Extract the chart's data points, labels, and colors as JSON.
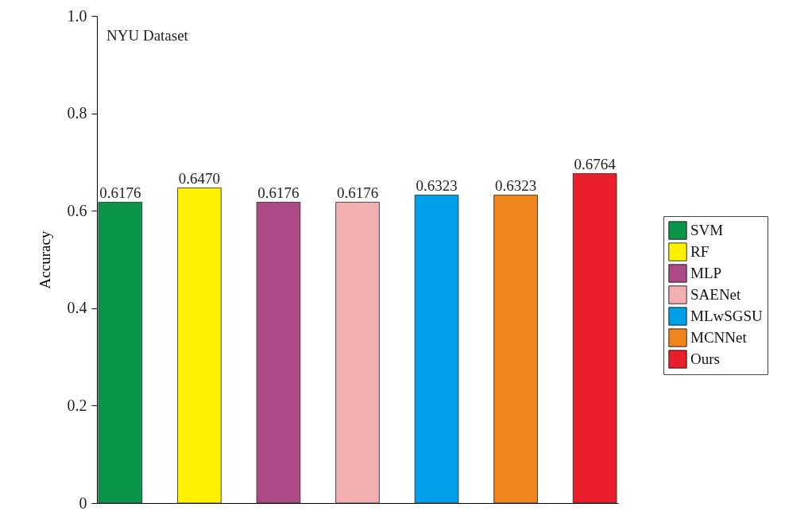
{
  "chart_data": {
    "type": "bar",
    "categories": [
      null,
      null,
      null,
      null,
      null,
      null,
      null
    ],
    "series": [
      {
        "name": "SVM",
        "color": "#0a9548",
        "values": [
          0.6176,
          null,
          null,
          null,
          null,
          null,
          null
        ],
        "value_labels": [
          "0.6176",
          null,
          null,
          null,
          null,
          null,
          null
        ]
      },
      {
        "name": "RF",
        "color": "#fff200",
        "values": [
          null,
          0.647,
          null,
          null,
          null,
          null,
          null
        ],
        "value_labels": [
          null,
          "0.6470",
          null,
          null,
          null,
          null,
          null
        ]
      },
      {
        "name": "MLP",
        "color": "#ad4a86",
        "values": [
          null,
          null,
          0.6176,
          null,
          null,
          null,
          null
        ],
        "value_labels": [
          null,
          null,
          "0.6176",
          null,
          null,
          null,
          null
        ]
      },
      {
        "name": "SAENet",
        "color": "#f2b0b2",
        "values": [
          null,
          null,
          null,
          0.6176,
          null,
          null,
          null
        ],
        "value_labels": [
          null,
          null,
          null,
          "0.6176",
          null,
          null,
          null
        ]
      },
      {
        "name": "MLwSGSU",
        "color": "#00a0e8",
        "values": [
          null,
          null,
          null,
          null,
          0.6323,
          null,
          null
        ],
        "value_labels": [
          null,
          null,
          null,
          null,
          "0.6323",
          null,
          null
        ]
      },
      {
        "name": "MCNNet",
        "color": "#f0851c",
        "values": [
          null,
          null,
          null,
          null,
          null,
          0.6323,
          null
        ],
        "value_labels": [
          null,
          null,
          null,
          null,
          null,
          "0.6323",
          null
        ]
      },
      {
        "name": "Ours",
        "color": "#e81f2a",
        "values": [
          null,
          null,
          null,
          null,
          null,
          null,
          0.6764
        ],
        "value_labels": [
          null,
          null,
          null,
          null,
          null,
          null,
          "0.6764"
        ]
      }
    ],
    "ylabel": "Accuracy",
    "ylim": [
      0,
      1
    ],
    "yticks": [
      0,
      0.2,
      0.4,
      0.6,
      0.8,
      {
        "value": 1,
        "label": "1.0"
      }
    ],
    "annotations": [
      "NYU Dataset"
    ],
    "legend": "right",
    "tick_labels": "y",
    "grid": false
  }
}
